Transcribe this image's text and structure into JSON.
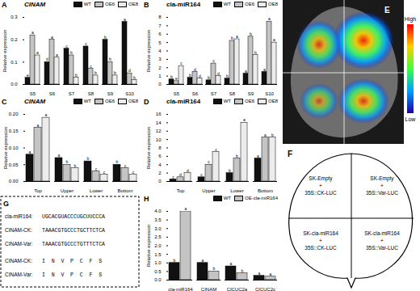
{
  "chart_data": [
    {
      "type": "bar",
      "annotations": [
        "A"
      ],
      "title": "CINAM",
      "y_label": "Relative expression",
      "categories": [
        "S5",
        "S6",
        "S7",
        "S8",
        "S9",
        "S10"
      ],
      "series": [
        {
          "name": "WT",
          "color": "#111111",
          "values": [
            0.03,
            0.1,
            0.16,
            0.17,
            0.2,
            0.28
          ],
          "letters": [
            "e",
            "d",
            "c",
            "c",
            "b",
            "a"
          ]
        },
        {
          "name": "OE6",
          "color": "#c4c4c4",
          "values": [
            0.22,
            0.2,
            0.13,
            0.07,
            0.1,
            0.05
          ],
          "letters": [
            "a",
            "a",
            "b",
            "c",
            "b",
            "d"
          ]
        },
        {
          "name": "OE8",
          "color": "#ececec",
          "values": [
            0.13,
            0.12,
            0.03,
            0.04,
            0.04,
            0.02
          ],
          "letters": [
            "a",
            "a",
            "b",
            "b",
            "b",
            "b"
          ]
        }
      ],
      "ylim": [
        0,
        0.3
      ],
      "yticks": [
        {
          "value": 0,
          "label": "0.0"
        },
        0.1,
        0.2,
        0.3
      ],
      "legend": "top"
    },
    {
      "type": "bar",
      "annotations": [
        "B"
      ],
      "title": "cla-miR164",
      "y_label": "Relative expression",
      "categories": [
        "S5",
        "S6",
        "S7",
        "S8",
        "S9",
        "S10"
      ],
      "series": [
        {
          "name": "WT",
          "color": "#111111",
          "values": [
            0.6,
            0.8,
            0.5,
            0.7,
            1.3,
            1.5
          ],
          "letters": [
            "b",
            "b",
            "b",
            "b",
            "a",
            "a"
          ]
        },
        {
          "name": "OE6",
          "color": "#c4c4c4",
          "values": [
            0.4,
            1.5,
            2.5,
            5.2,
            5.7,
            7.5
          ],
          "letters": [
            "e",
            "d",
            "c",
            "b",
            "b",
            "a"
          ]
        },
        {
          "name": "OE8",
          "color": "#ececec",
          "values": [
            2.2,
            0.7,
            1.0,
            5.4,
            3.5,
            5.0
          ],
          "letters": [
            "c",
            "d",
            "d",
            "a",
            "b",
            "a"
          ]
        }
      ],
      "ylim": [
        0,
        8
      ],
      "yticks": [
        0,
        1,
        2,
        3,
        4,
        5,
        6,
        7,
        8
      ],
      "legend": "top"
    },
    {
      "type": "bar",
      "annotations": [
        "C"
      ],
      "title": "CINAM",
      "y_label": "Relative expression",
      "categories": [
        "Top",
        "Upper",
        "Lower",
        "Bottom"
      ],
      "series": [
        {
          "name": "WT",
          "color": "#111111",
          "values": [
            0.08,
            0.07,
            0.06,
            0.05
          ],
          "letters": [
            "a",
            "a",
            "b",
            "b"
          ]
        },
        {
          "name": "OE6",
          "color": "#c4c4c4",
          "values": [
            0.16,
            0.05,
            0.03,
            0.04
          ],
          "letters": [
            "a",
            "b",
            "c",
            "c"
          ]
        },
        {
          "name": "OE8",
          "color": "#ececec",
          "values": [
            0.19,
            0.04,
            0.02,
            0.02
          ],
          "letters": [
            "a",
            "b",
            "c",
            "c"
          ]
        }
      ],
      "ylim": [
        0,
        0.2
      ],
      "yticks": [
        {
          "value": 0,
          "label": "0.00"
        },
        0.05,
        {
          "value": 0.1,
          "label": "0.10"
        },
        0.15,
        {
          "value": 0.2,
          "label": "0.20"
        }
      ],
      "legend": "top"
    },
    {
      "type": "bar",
      "annotations": [
        "D"
      ],
      "title": "cla-miR164",
      "y_label": "Relative expression",
      "categories": [
        "Top",
        "Upper",
        "Lower",
        "Bottom"
      ],
      "series": [
        {
          "name": "WT",
          "color": "#111111",
          "values": [
            0.5,
            1.0,
            2.0,
            5.5
          ],
          "letters": [
            "c",
            "c",
            "b",
            "a"
          ]
        },
        {
          "name": "OE6",
          "color": "#c4c4c4",
          "values": [
            1.0,
            4.0,
            5.5,
            10.5
          ],
          "letters": [
            "d",
            "c",
            "b",
            "a"
          ]
        },
        {
          "name": "OE8",
          "color": "#ececec",
          "values": [
            2.0,
            7.0,
            14.0,
            10.5
          ],
          "letters": [
            "d",
            "c",
            "a",
            "b"
          ]
        }
      ],
      "ylim": [
        0,
        16
      ],
      "yticks": [
        0,
        2,
        4,
        6,
        8,
        10,
        12,
        14,
        16
      ],
      "legend": "top"
    },
    {
      "type": "bar",
      "annotations": [
        "H"
      ],
      "y_label": "Relative expression",
      "categories": [
        "cla-miR164",
        "CINAM",
        "ClCUC2a",
        "ClCUC2c"
      ],
      "series": [
        {
          "name": "WT",
          "color": "#111111",
          "values": [
            1.0,
            1.0,
            0.8,
            0.25
          ],
          "letters": [
            "b",
            "a",
            "a",
            "a"
          ]
        },
        {
          "name": "OE-cla-miR164",
          "color": "#c4c4c4",
          "values": [
            4.0,
            0.5,
            0.4,
            0.2
          ],
          "letters": [
            "a",
            "b",
            "b",
            "a"
          ]
        }
      ],
      "ylim": [
        0,
        4
      ],
      "yticks": [
        {
          "value": 0,
          "label": "0.0"
        },
        0.5,
        {
          "value": 1,
          "label": "1.0"
        },
        1.5,
        {
          "value": 2,
          "label": "2.0"
        },
        2.5,
        {
          "value": 3,
          "label": "3.0"
        },
        3.5,
        {
          "value": 4,
          "label": "4.0"
        }
      ],
      "legend": "top"
    }
  ],
  "panels": {
    "E": {
      "label": "E",
      "colorbar": {
        "high": "High",
        "low": "Low"
      }
    },
    "F": {
      "label": "F",
      "quadrants": [
        [
          "SK-Empty",
          "+",
          "35S::CK-LUC"
        ],
        [
          "SK-Empty",
          "+",
          "35S::Var-LUC"
        ],
        [
          "SK-cla-miR164",
          "+",
          "35S::CK-LUC"
        ],
        [
          "SK-cla-miR164",
          "+",
          "35S::Var-LUC"
        ]
      ]
    },
    "G": {
      "label": "G",
      "rows": [
        [
          "cla-miR164:",
          "UGCACGUACCCUGCUUCCCA"
        ],
        [
          "CINAM-CK:",
          "TAAACGTGCCCTGCTTCTCA"
        ],
        [
          "CINAM-Var:",
          "TAAACGTGCCCTGTTTCTCA"
        ],
        [
          "CINAM-CK:",
          "I  N  V  P  C  F  S"
        ],
        [
          "CINAM-Var:",
          "I  N  V  P  C  F  S"
        ]
      ]
    }
  }
}
